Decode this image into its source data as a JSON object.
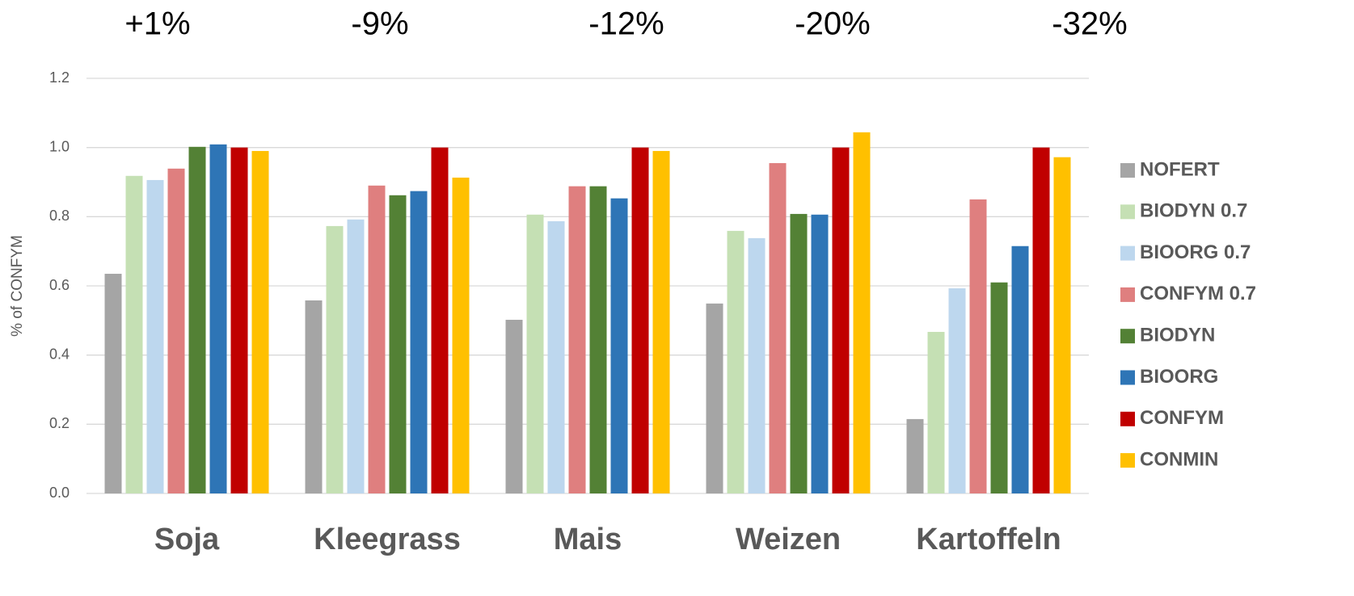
{
  "chart_data": {
    "type": "bar",
    "annotations": [
      "+1%",
      "-9%",
      "-12%",
      "-20%",
      "-32%"
    ],
    "y_label": "% of CONFYM",
    "categories": [
      "Soja",
      "Kleegrass",
      "Mais",
      "Weizen",
      "Kartoffeln"
    ],
    "series": [
      {
        "name": "NOFERT",
        "color": "#a5a5a5",
        "values": [
          0.635,
          0.558,
          0.502,
          0.549,
          0.215
        ]
      },
      {
        "name": "BIODYN 0.7",
        "color": "#c5e0b4",
        "values": [
          0.918,
          0.773,
          0.806,
          0.759,
          0.467
        ]
      },
      {
        "name": "BIOORG 0.7",
        "color": "#bdd7ee",
        "values": [
          0.906,
          0.792,
          0.787,
          0.738,
          0.593
        ]
      },
      {
        "name": "CONFYM 0.7",
        "color": "#df7f7f",
        "values": [
          0.939,
          0.89,
          0.888,
          0.955,
          0.85
        ]
      },
      {
        "name": "BIODYN",
        "color": "#538135",
        "values": [
          1.002,
          0.862,
          0.888,
          0.808,
          0.61
        ]
      },
      {
        "name": "BIOORG",
        "color": "#2e75b6",
        "values": [
          1.009,
          0.874,
          0.853,
          0.806,
          0.715
        ]
      },
      {
        "name": "CONFYM",
        "color": "#c00000",
        "values": [
          1.0,
          1.0,
          1.0,
          1.0,
          1.0
        ]
      },
      {
        "name": "CONMIN",
        "color": "#ffc000",
        "values": [
          0.99,
          0.913,
          0.99,
          1.044,
          0.972
        ]
      }
    ],
    "ylim": [
      0,
      1.2
    ],
    "yticks": [
      {
        "value": 0,
        "label": "0.0"
      },
      0.2,
      0.4,
      0.6,
      0.8,
      {
        "value": 1,
        "label": "1.0"
      },
      1.2
    ],
    "grid": true,
    "legend": "right"
  }
}
